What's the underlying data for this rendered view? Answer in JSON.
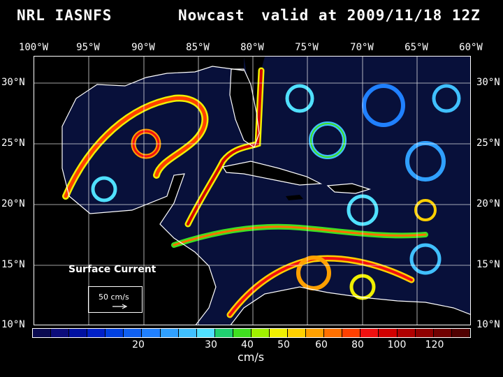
{
  "title": {
    "product": "NRL IASNFS",
    "type": "Nowcast",
    "valid": "valid at 2009/11/18 12Z"
  },
  "lon_labels": [
    "100°W",
    "95°W",
    "90°W",
    "85°W",
    "80°W",
    "75°W",
    "70°W",
    "65°W",
    "60°W"
  ],
  "lat_labels": [
    "30°N",
    "25°N",
    "20°N",
    "15°N",
    "10°N"
  ],
  "legend": {
    "title": "Surface Current",
    "ref_label": "50 cm/s",
    "icon": "vector-arrow-icon"
  },
  "colorbar": {
    "labels": [
      "20",
      "30",
      "40",
      "50",
      "60",
      "80",
      "100",
      "120"
    ],
    "units": "cm/s",
    "colors": [
      "#0a0a50",
      "#0c0c7a",
      "#0010a0",
      "#0020c8",
      "#0040e0",
      "#1060f0",
      "#2080ff",
      "#30a0ff",
      "#40c0ff",
      "#50e0ff",
      "#20d070",
      "#40e020",
      "#a0f000",
      "#f0f000",
      "#ffd000",
      "#ffa000",
      "#ff7000",
      "#ff4000",
      "#f01010",
      "#d00000",
      "#b00000",
      "#900000",
      "#700000",
      "#500000"
    ]
  }
}
